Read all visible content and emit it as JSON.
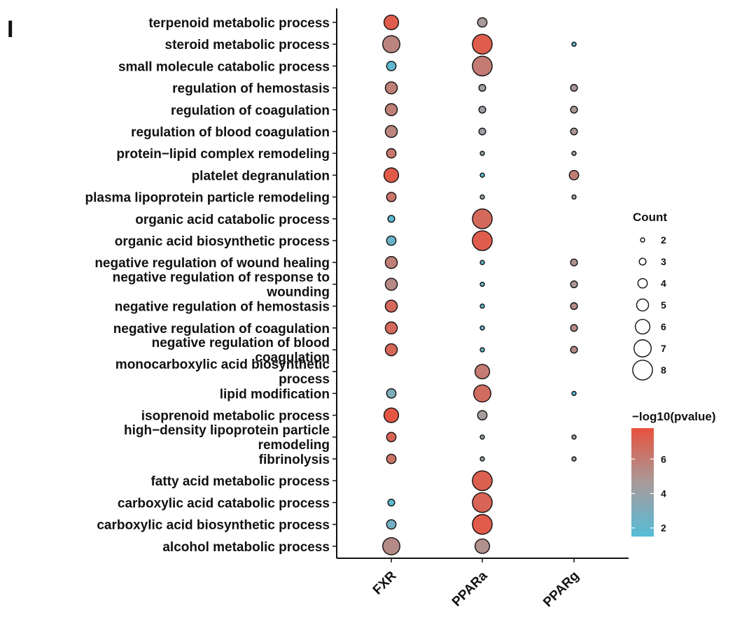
{
  "chart_data": {
    "type": "scatter",
    "panel_label": "I",
    "xcategories": [
      "FXR",
      "PPARa",
      "PPARg"
    ],
    "ycategories": [
      "terpenoid metabolic process",
      "steroid metabolic process",
      "small molecule catabolic process",
      "regulation of hemostasis",
      "regulation of coagulation",
      "regulation of blood coagulation",
      "protein−lipid complex remodeling",
      "platelet degranulation",
      "plasma lipoprotein particle remodeling",
      "organic acid catabolic process",
      "organic acid biosynthetic process",
      "negative regulation of wound healing",
      [
        "negative regulation of response to",
        "wounding"
      ],
      "negative regulation of hemostasis",
      "negative regulation of coagulation",
      [
        "negative regulation of blood",
        "coagulation"
      ],
      [
        "monocarboxylic acid biosynthetic",
        "process"
      ],
      "lipid modification",
      "isoprenoid metabolic process",
      [
        "high−density lipoprotein particle",
        "remodeling"
      ],
      "fibrinolysis",
      "fatty acid metabolic process",
      "carboxylic acid catabolic process",
      "carboxylic acid biosynthetic process",
      "alcohol metabolic process"
    ],
    "points": [
      {
        "x": "FXR",
        "y": 0,
        "count": 6,
        "nlog10p": 7.3
      },
      {
        "x": "PPARa",
        "y": 0,
        "count": 4,
        "nlog10p": 4.7
      },
      {
        "x": "FXR",
        "y": 1,
        "count": 7,
        "nlog10p": 5.6
      },
      {
        "x": "PPARa",
        "y": 1,
        "count": 8,
        "nlog10p": 7.3
      },
      {
        "x": "PPARg",
        "y": 1,
        "count": 2,
        "nlog10p": 2.0
      },
      {
        "x": "FXR",
        "y": 2,
        "count": 4,
        "nlog10p": 1.9
      },
      {
        "x": "PPARa",
        "y": 2,
        "count": 8,
        "nlog10p": 6.0
      },
      {
        "x": "FXR",
        "y": 3,
        "count": 5,
        "nlog10p": 5.8
      },
      {
        "x": "PPARa",
        "y": 3,
        "count": 3,
        "nlog10p": 4.2
      },
      {
        "x": "PPARg",
        "y": 3,
        "count": 3,
        "nlog10p": 4.8
      },
      {
        "x": "FXR",
        "y": 4,
        "count": 5,
        "nlog10p": 5.8
      },
      {
        "x": "PPARa",
        "y": 4,
        "count": 3,
        "nlog10p": 4.2
      },
      {
        "x": "PPARg",
        "y": 4,
        "count": 3,
        "nlog10p": 4.8
      },
      {
        "x": "FXR",
        "y": 5,
        "count": 5,
        "nlog10p": 5.6
      },
      {
        "x": "PPARa",
        "y": 5,
        "count": 3,
        "nlog10p": 4.2
      },
      {
        "x": "PPARg",
        "y": 5,
        "count": 3,
        "nlog10p": 4.8
      },
      {
        "x": "FXR",
        "y": 6,
        "count": 4,
        "nlog10p": 6.2
      },
      {
        "x": "PPARa",
        "y": 6,
        "count": 2,
        "nlog10p": 3.9
      },
      {
        "x": "PPARg",
        "y": 6,
        "count": 2,
        "nlog10p": 4.0
      },
      {
        "x": "FXR",
        "y": 7,
        "count": 6,
        "nlog10p": 7.4
      },
      {
        "x": "PPARa",
        "y": 7,
        "count": 2,
        "nlog10p": 1.9
      },
      {
        "x": "PPARg",
        "y": 7,
        "count": 4,
        "nlog10p": 5.9
      },
      {
        "x": "FXR",
        "y": 8,
        "count": 4,
        "nlog10p": 6.3
      },
      {
        "x": "PPARa",
        "y": 8,
        "count": 2,
        "nlog10p": 3.9
      },
      {
        "x": "PPARg",
        "y": 8,
        "count": 2,
        "nlog10p": 4.0
      },
      {
        "x": "FXR",
        "y": 9,
        "count": 3,
        "nlog10p": 1.8
      },
      {
        "x": "PPARa",
        "y": 9,
        "count": 8,
        "nlog10p": 6.8
      },
      {
        "x": "FXR",
        "y": 10,
        "count": 4,
        "nlog10p": 2.2
      },
      {
        "x": "PPARa",
        "y": 10,
        "count": 8,
        "nlog10p": 7.3
      },
      {
        "x": "FXR",
        "y": 11,
        "count": 5,
        "nlog10p": 5.8
      },
      {
        "x": "PPARa",
        "y": 11,
        "count": 2,
        "nlog10p": 2.0
      },
      {
        "x": "PPARg",
        "y": 11,
        "count": 3,
        "nlog10p": 5.0
      },
      {
        "x": "FXR",
        "y": 12,
        "count": 5,
        "nlog10p": 5.4
      },
      {
        "x": "PPARa",
        "y": 12,
        "count": 2,
        "nlog10p": 2.0
      },
      {
        "x": "PPARg",
        "y": 12,
        "count": 3,
        "nlog10p": 4.8
      },
      {
        "x": "FXR",
        "y": 13,
        "count": 5,
        "nlog10p": 6.8
      },
      {
        "x": "PPARa",
        "y": 13,
        "count": 2,
        "nlog10p": 2.0
      },
      {
        "x": "PPARg",
        "y": 13,
        "count": 3,
        "nlog10p": 5.3
      },
      {
        "x": "FXR",
        "y": 14,
        "count": 5,
        "nlog10p": 6.8
      },
      {
        "x": "PPARa",
        "y": 14,
        "count": 2,
        "nlog10p": 2.0
      },
      {
        "x": "PPARg",
        "y": 14,
        "count": 3,
        "nlog10p": 5.3
      },
      {
        "x": "FXR",
        "y": 15,
        "count": 5,
        "nlog10p": 6.9
      },
      {
        "x": "PPARa",
        "y": 15,
        "count": 2,
        "nlog10p": 2.0
      },
      {
        "x": "PPARg",
        "y": 15,
        "count": 3,
        "nlog10p": 5.3
      },
      {
        "x": "PPARa",
        "y": 16,
        "count": 6,
        "nlog10p": 6.0
      },
      {
        "x": "FXR",
        "y": 17,
        "count": 4,
        "nlog10p": 3.0
      },
      {
        "x": "PPARa",
        "y": 17,
        "count": 7,
        "nlog10p": 6.6
      },
      {
        "x": "PPARg",
        "y": 17,
        "count": 2,
        "nlog10p": 1.8
      },
      {
        "x": "FXR",
        "y": 18,
        "count": 6,
        "nlog10p": 7.6
      },
      {
        "x": "PPARa",
        "y": 18,
        "count": 4,
        "nlog10p": 4.6
      },
      {
        "x": "FXR",
        "y": 19,
        "count": 4,
        "nlog10p": 7.0
      },
      {
        "x": "PPARa",
        "y": 19,
        "count": 2,
        "nlog10p": 3.9
      },
      {
        "x": "PPARg",
        "y": 19,
        "count": 2,
        "nlog10p": 4.0
      },
      {
        "x": "FXR",
        "y": 20,
        "count": 4,
        "nlog10p": 6.4
      },
      {
        "x": "PPARa",
        "y": 20,
        "count": 2,
        "nlog10p": 3.9
      },
      {
        "x": "PPARg",
        "y": 20,
        "count": 2,
        "nlog10p": 4.0
      },
      {
        "x": "PPARa",
        "y": 21,
        "count": 8,
        "nlog10p": 7.2
      },
      {
        "x": "FXR",
        "y": 22,
        "count": 3,
        "nlog10p": 1.8
      },
      {
        "x": "PPARa",
        "y": 22,
        "count": 8,
        "nlog10p": 7.0
      },
      {
        "x": "FXR",
        "y": 23,
        "count": 4,
        "nlog10p": 2.6
      },
      {
        "x": "PPARa",
        "y": 23,
        "count": 8,
        "nlog10p": 7.4
      },
      {
        "x": "FXR",
        "y": 24,
        "count": 7,
        "nlog10p": 5.3
      },
      {
        "x": "PPARa",
        "y": 24,
        "count": 6,
        "nlog10p": 5.1
      }
    ],
    "size_legend": {
      "title": "Count",
      "values": [
        2,
        3,
        4,
        5,
        6,
        7,
        8
      ]
    },
    "color_legend": {
      "title": "−log10(pvalue)",
      "range": [
        1.5,
        7.8
      ],
      "ticks": [
        2,
        4,
        6
      ],
      "low_color": "#56bcd8",
      "mid_color": "#a89a9a",
      "high_color": "#e8523e"
    }
  }
}
